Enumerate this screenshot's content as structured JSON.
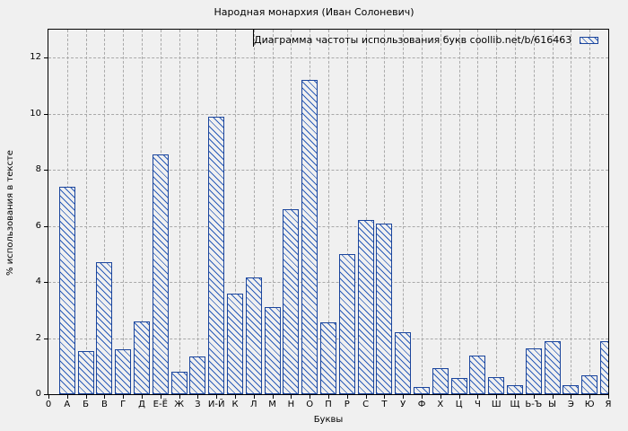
{
  "window": {
    "background": "#f0f0f0"
  },
  "chart_data": {
    "type": "bar",
    "title": "Народная монархия (Иван Солоневич)",
    "legend_label": "Диаграмма частоты использования букв coollib.net/b/616463",
    "xlabel": "Буквы",
    "ylabel": "% использования в тексте",
    "origin_tick_label": "0",
    "categories": [
      "А",
      "Б",
      "В",
      "Г",
      "Д",
      "Е-Ё",
      "Ж",
      "З",
      "И-Й",
      "К",
      "Л",
      "М",
      "Н",
      "О",
      "П",
      "Р",
      "С",
      "Т",
      "У",
      "Ф",
      "Х",
      "Ц",
      "Ч",
      "Ш",
      "Щ",
      "Ь-Ъ",
      "Ы",
      "Э",
      "Ю",
      "Я"
    ],
    "values": [
      7.4,
      1.55,
      4.7,
      1.6,
      2.6,
      8.55,
      0.8,
      1.35,
      9.9,
      3.6,
      4.15,
      3.1,
      6.6,
      11.2,
      2.55,
      5.0,
      6.2,
      6.1,
      2.2,
      0.27,
      0.93,
      0.57,
      1.38,
      0.6,
      0.32,
      1.62,
      1.9,
      0.32,
      0.67,
      1.88
    ],
    "ylim": [
      0,
      13
    ],
    "yticks": [
      0,
      2,
      4,
      6,
      8,
      10,
      12
    ],
    "grid": true,
    "legend_position": "top-right",
    "colors": {
      "figure_background": "#f0f0f0",
      "bar_border": "#1b459c",
      "bar_hatch": "#2b5cb8",
      "grid_line": "#a9a9a9",
      "axis_line": "#000000",
      "text": "#000000"
    }
  }
}
